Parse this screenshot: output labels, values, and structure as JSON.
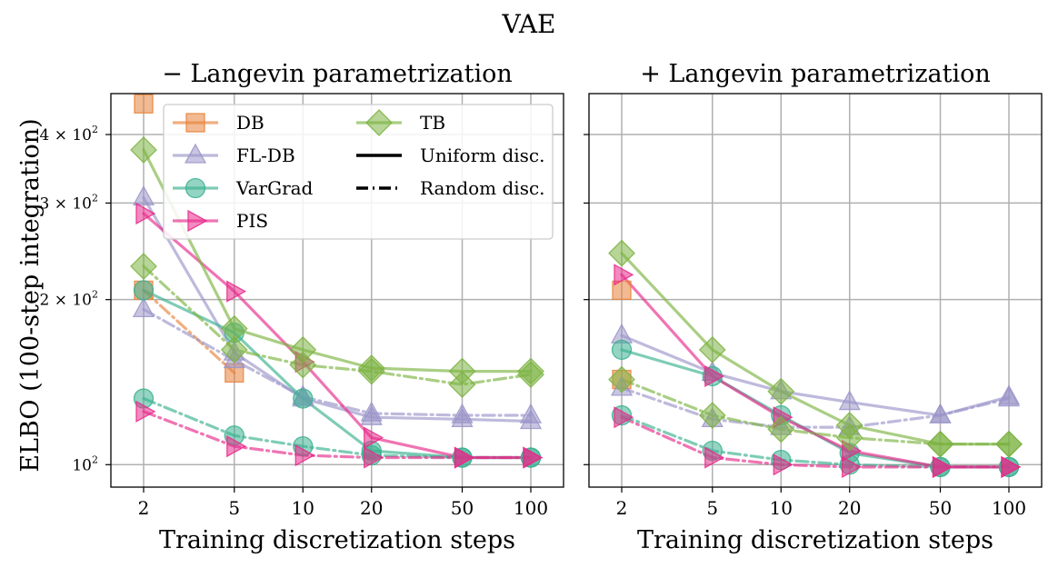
{
  "suptitle": "VAE",
  "ylabel": "ELBO (100-step integration)",
  "xlabel": "Training discretization steps",
  "x_ticks": [
    2,
    5,
    10,
    20,
    50,
    100
  ],
  "x_tick_labels": [
    "2",
    "5",
    "10",
    "20",
    "50",
    "100"
  ],
  "y_ticks": [
    {
      "value": 100,
      "base": "10",
      "exp": "2",
      "coef": ""
    },
    {
      "value": 200,
      "base": "10",
      "exp": "2",
      "coef": "2 × "
    },
    {
      "value": 300,
      "base": "10",
      "exp": "2",
      "coef": "3 × "
    },
    {
      "value": 400,
      "base": "10",
      "exp": "2",
      "coef": "4 × "
    }
  ],
  "legend": {
    "methods": [
      {
        "name": "DB",
        "key": "DB"
      },
      {
        "name": "FL-DB",
        "key": "FLDB"
      },
      {
        "name": "VarGrad",
        "key": "VarGrad"
      },
      {
        "name": "PIS",
        "key": "PIS"
      },
      {
        "name": "TB",
        "key": "TB"
      }
    ],
    "styles": [
      {
        "label": "Uniform disc.",
        "dash": "solid"
      },
      {
        "label": "Random disc.",
        "dash": "dashdot"
      }
    ]
  },
  "colors": {
    "DB": "#e8823a",
    "FLDB": "#9b95c9",
    "VarGrad": "#3bb08f",
    "PIS": "#e7298a",
    "TB": "#7cb342"
  },
  "chart_data": [
    {
      "type": "line",
      "title": "− Langevin parametrization",
      "xscale": "log",
      "yscale": "log",
      "ylim": [
        91,
        475
      ],
      "series": [
        {
          "method": "DB",
          "disc": "Uniform disc.",
          "x": [
            2
          ],
          "values": [
            455
          ]
        },
        {
          "method": "DB",
          "disc": "Random disc.",
          "x": [
            2,
            5
          ],
          "values": [
            208,
            147
          ]
        },
        {
          "method": "FL-DB",
          "disc": "Uniform disc.",
          "x": [
            2,
            5,
            10,
            20,
            50,
            100
          ],
          "values": [
            307,
            160,
            132,
            122,
            121,
            120
          ]
        },
        {
          "method": "FL-DB",
          "disc": "Random disc.",
          "x": [
            2,
            5,
            10,
            20,
            50,
            100
          ],
          "values": [
            192,
            155,
            133,
            124,
            123,
            123
          ]
        },
        {
          "method": "VarGrad",
          "disc": "Uniform disc.",
          "x": [
            2,
            5,
            10,
            20,
            50,
            100
          ],
          "values": [
            208,
            174,
            132,
            106,
            103,
            103
          ]
        },
        {
          "method": "VarGrad",
          "disc": "Random disc.",
          "x": [
            2,
            5,
            10,
            20,
            50,
            100
          ],
          "values": [
            132,
            113,
            108,
            104,
            103,
            103
          ]
        },
        {
          "method": "PIS",
          "disc": "Uniform disc.",
          "x": [
            2,
            5,
            10,
            20,
            50,
            100
          ],
          "values": [
            287,
            207,
            154,
            112,
            103,
            103
          ]
        },
        {
          "method": "PIS",
          "disc": "Random disc.",
          "x": [
            2,
            5,
            10,
            20,
            50,
            100
          ],
          "values": [
            125,
            108,
            104,
            103,
            103,
            103
          ]
        },
        {
          "method": "TB",
          "disc": "Uniform disc.",
          "x": [
            2,
            5,
            10,
            20,
            50,
            100
          ],
          "values": [
            375,
            177,
            162,
            150,
            148,
            148
          ]
        },
        {
          "method": "TB",
          "disc": "Random disc.",
          "x": [
            2,
            5,
            10,
            20,
            50,
            100
          ],
          "values": [
            230,
            162,
            152,
            148,
            140,
            146
          ]
        }
      ]
    },
    {
      "type": "line",
      "title": "+ Langevin parametrization",
      "xscale": "log",
      "yscale": "log",
      "ylim": [
        91,
        475
      ],
      "series": [
        {
          "method": "DB",
          "disc": "Uniform disc.",
          "x": [
            2
          ],
          "values": [
            208
          ]
        },
        {
          "method": "DB",
          "disc": "Random disc.",
          "x": [
            2
          ],
          "values": [
            143
          ]
        },
        {
          "method": "FL-DB",
          "disc": "Uniform disc.",
          "x": [
            2,
            5,
            10,
            20,
            50,
            100
          ],
          "values": [
            172,
            147,
            136,
            130,
            123,
            133
          ]
        },
        {
          "method": "FL-DB",
          "disc": "Random disc.",
          "x": [
            2,
            5,
            10,
            20,
            50,
            100
          ],
          "values": [
            138,
            121,
            117,
            117,
            123,
            132
          ]
        },
        {
          "method": "VarGrad",
          "disc": "Uniform disc.",
          "x": [
            2,
            5,
            10,
            20,
            50,
            100
          ],
          "values": [
            162,
            145,
            123,
            105,
            99,
            99
          ]
        },
        {
          "method": "VarGrad",
          "disc": "Random disc.",
          "x": [
            2,
            5,
            10,
            20,
            50,
            100
          ],
          "values": [
            123,
            106,
            102,
            100,
            99,
            99
          ]
        },
        {
          "method": "PIS",
          "disc": "Uniform disc.",
          "x": [
            2,
            5,
            10,
            20,
            50,
            100
          ],
          "values": [
            222,
            145,
            122,
            106,
            99,
            99
          ]
        },
        {
          "method": "PIS",
          "disc": "Random disc.",
          "x": [
            2,
            5,
            10,
            20,
            50,
            100
          ],
          "values": [
            122,
            103,
            100,
            99,
            99,
            99
          ]
        },
        {
          "method": "TB",
          "disc": "Uniform disc.",
          "x": [
            2,
            5,
            10,
            20,
            50,
            100
          ],
          "values": [
            243,
            162,
            136,
            118,
            109,
            109
          ]
        },
        {
          "method": "TB",
          "disc": "Random disc.",
          "x": [
            2,
            5,
            10,
            20,
            50,
            100
          ],
          "values": [
            143,
            123,
            116,
            112,
            109,
            109
          ]
        }
      ]
    }
  ]
}
